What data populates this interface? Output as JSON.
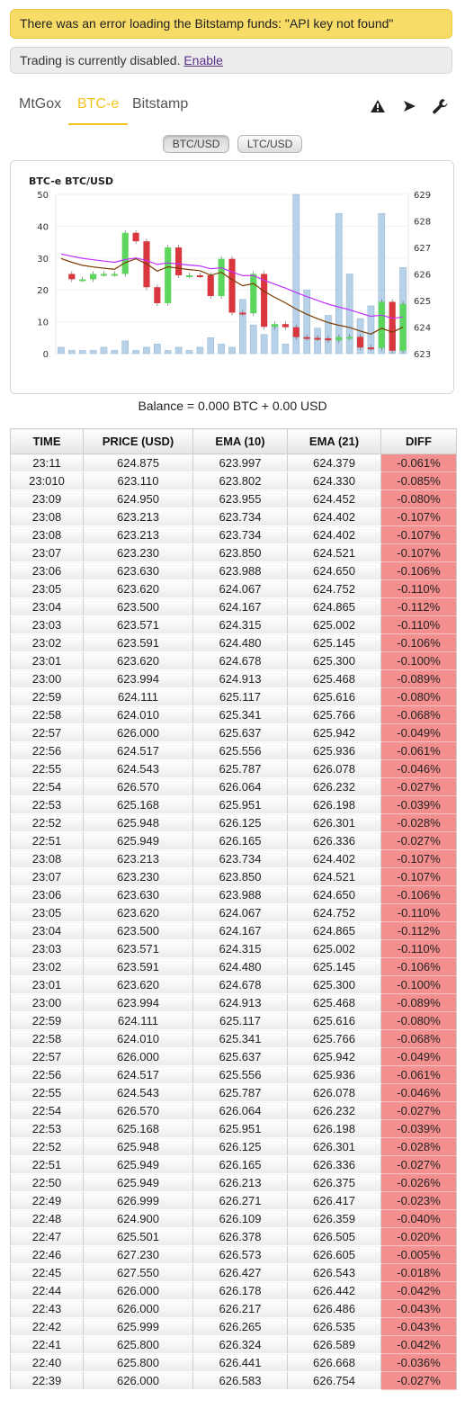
{
  "alerts": {
    "error": "There was an error loading the Bitstamp funds: \"API key not found\"",
    "info_text": "Trading is currently disabled.",
    "info_link": "Enable"
  },
  "tabs": [
    {
      "label": "MtGox",
      "active": false
    },
    {
      "label": "BTC-e",
      "active": true
    },
    {
      "label": "Bitstamp",
      "active": false
    }
  ],
  "toolbar_icons": [
    "warning-icon",
    "play-icon",
    "wrench-icon"
  ],
  "pairs": [
    {
      "label": "BTC/USD",
      "active": true
    },
    {
      "label": "LTC/USD",
      "active": false
    }
  ],
  "colors": {
    "accent": "#f3c11c",
    "up_candle": "#5cd65c",
    "down_candle": "#d9363e",
    "volume_bar": "#b7d2e8",
    "ema_fast": "#7a3b00",
    "ema_slow": "#c030ff",
    "diff_negative": "#f48f8f"
  },
  "chart_data": {
    "type": "candlestick",
    "title": "BTC-e BTC/USD",
    "left_axis_ticks": [
      "0",
      "10",
      "20",
      "30",
      "40",
      "50"
    ],
    "right_axis_ticks": [
      "623",
      "624",
      "625",
      "626",
      "627",
      "628",
      "629"
    ],
    "left_ylim": [
      0,
      50
    ],
    "right_ylim": [
      623,
      629
    ],
    "series": [
      {
        "name": "EMA (10)",
        "values": [
          626.583,
          626.441,
          626.324,
          626.265,
          626.217,
          626.178,
          626.427,
          626.573,
          626.378,
          626.109,
          626.271,
          626.213,
          626.165,
          626.125,
          625.951,
          626.064,
          625.787,
          625.556,
          625.637,
          625.341,
          625.117,
          624.913,
          624.678,
          624.48,
          624.315,
          624.167,
          624.067,
          623.988,
          623.85,
          623.734,
          623.955,
          623.802,
          623.997
        ]
      },
      {
        "name": "EMA (21)",
        "values": [
          626.754,
          626.668,
          626.589,
          626.535,
          626.486,
          626.442,
          626.543,
          626.605,
          626.505,
          626.359,
          626.417,
          626.375,
          626.336,
          626.301,
          626.198,
          626.232,
          626.078,
          625.936,
          625.942,
          625.766,
          625.616,
          625.468,
          625.3,
          625.145,
          625.002,
          624.865,
          624.752,
          624.65,
          624.521,
          624.402,
          624.452,
          624.33,
          624.379
        ]
      },
      {
        "name": "Price",
        "values": [
          626.0,
          625.8,
          625.8,
          625.999,
          626.0,
          626.0,
          627.55,
          627.23,
          625.501,
          624.9,
          626.999,
          625.949,
          625.949,
          625.948,
          625.168,
          626.57,
          624.543,
          624.517,
          626.0,
          624.01,
          624.111,
          623.994,
          623.62,
          623.591,
          623.571,
          623.5,
          623.62,
          623.63,
          623.23,
          623.213,
          624.95,
          623.11,
          624.875
        ]
      }
    ],
    "volume": [
      2,
      1,
      1,
      1,
      2,
      1,
      4,
      1,
      2,
      3,
      1,
      2,
      1,
      2,
      5,
      3,
      2,
      17,
      9,
      6,
      9,
      3,
      50,
      20,
      8,
      12,
      44,
      25,
      11,
      15,
      44,
      9,
      27
    ]
  },
  "balance": "Balance = 0.000 BTC + 0.00 USD",
  "table": {
    "headers": [
      "TIME",
      "PRICE (USD)",
      "EMA (10)",
      "EMA (21)",
      "DIFF"
    ],
    "rows": [
      [
        "23:11",
        "624.875",
        "623.997",
        "624.379",
        "-0.061%"
      ],
      [
        "23:010",
        "623.110",
        "623.802",
        "624.330",
        "-0.085%"
      ],
      [
        "23:09",
        "624.950",
        "623.955",
        "624.452",
        "-0.080%"
      ],
      [
        "23:08",
        "623.213",
        "623.734",
        "624.402",
        "-0.107%"
      ],
      [
        "23:08",
        "623.213",
        "623.734",
        "624.402",
        "-0.107%"
      ],
      [
        "23:07",
        "623.230",
        "623.850",
        "624.521",
        "-0.107%"
      ],
      [
        "23:06",
        "623.630",
        "623.988",
        "624.650",
        "-0.106%"
      ],
      [
        "23:05",
        "623.620",
        "624.067",
        "624.752",
        "-0.110%"
      ],
      [
        "23:04",
        "623.500",
        "624.167",
        "624.865",
        "-0.112%"
      ],
      [
        "23:03",
        "623.571",
        "624.315",
        "625.002",
        "-0.110%"
      ],
      [
        "23:02",
        "623.591",
        "624.480",
        "625.145",
        "-0.106%"
      ],
      [
        "23:01",
        "623.620",
        "624.678",
        "625.300",
        "-0.100%"
      ],
      [
        "23:00",
        "623.994",
        "624.913",
        "625.468",
        "-0.089%"
      ],
      [
        "22:59",
        "624.111",
        "625.117",
        "625.616",
        "-0.080%"
      ],
      [
        "22:58",
        "624.010",
        "625.341",
        "625.766",
        "-0.068%"
      ],
      [
        "22:57",
        "626.000",
        "625.637",
        "625.942",
        "-0.049%"
      ],
      [
        "22:56",
        "624.517",
        "625.556",
        "625.936",
        "-0.061%"
      ],
      [
        "22:55",
        "624.543",
        "625.787",
        "626.078",
        "-0.046%"
      ],
      [
        "22:54",
        "626.570",
        "626.064",
        "626.232",
        "-0.027%"
      ],
      [
        "22:53",
        "625.168",
        "625.951",
        "626.198",
        "-0.039%"
      ],
      [
        "22:52",
        "625.948",
        "626.125",
        "626.301",
        "-0.028%"
      ],
      [
        "22:51",
        "625.949",
        "626.165",
        "626.336",
        "-0.027%"
      ],
      [
        "23:08",
        "623.213",
        "623.734",
        "624.402",
        "-0.107%"
      ],
      [
        "23:07",
        "623.230",
        "623.850",
        "624.521",
        "-0.107%"
      ],
      [
        "23:06",
        "623.630",
        "623.988",
        "624.650",
        "-0.106%"
      ],
      [
        "23:05",
        "623.620",
        "624.067",
        "624.752",
        "-0.110%"
      ],
      [
        "23:04",
        "623.500",
        "624.167",
        "624.865",
        "-0.112%"
      ],
      [
        "23:03",
        "623.571",
        "624.315",
        "625.002",
        "-0.110%"
      ],
      [
        "23:02",
        "623.591",
        "624.480",
        "625.145",
        "-0.106%"
      ],
      [
        "23:01",
        "623.620",
        "624.678",
        "625.300",
        "-0.100%"
      ],
      [
        "23:00",
        "623.994",
        "624.913",
        "625.468",
        "-0.089%"
      ],
      [
        "22:59",
        "624.111",
        "625.117",
        "625.616",
        "-0.080%"
      ],
      [
        "22:58",
        "624.010",
        "625.341",
        "625.766",
        "-0.068%"
      ],
      [
        "22:57",
        "626.000",
        "625.637",
        "625.942",
        "-0.049%"
      ],
      [
        "22:56",
        "624.517",
        "625.556",
        "625.936",
        "-0.061%"
      ],
      [
        "22:55",
        "624.543",
        "625.787",
        "626.078",
        "-0.046%"
      ],
      [
        "22:54",
        "626.570",
        "626.064",
        "626.232",
        "-0.027%"
      ],
      [
        "22:53",
        "625.168",
        "625.951",
        "626.198",
        "-0.039%"
      ],
      [
        "22:52",
        "625.948",
        "626.125",
        "626.301",
        "-0.028%"
      ],
      [
        "22:51",
        "625.949",
        "626.165",
        "626.336",
        "-0.027%"
      ],
      [
        "22:50",
        "625.949",
        "626.213",
        "626.375",
        "-0.026%"
      ],
      [
        "22:49",
        "626.999",
        "626.271",
        "626.417",
        "-0.023%"
      ],
      [
        "22:48",
        "624.900",
        "626.109",
        "626.359",
        "-0.040%"
      ],
      [
        "22:47",
        "625.501",
        "626.378",
        "626.505",
        "-0.020%"
      ],
      [
        "22:46",
        "627.230",
        "626.573",
        "626.605",
        "-0.005%"
      ],
      [
        "22:45",
        "627.550",
        "626.427",
        "626.543",
        "-0.018%"
      ],
      [
        "22:44",
        "626.000",
        "626.178",
        "626.442",
        "-0.042%"
      ],
      [
        "22:43",
        "626.000",
        "626.217",
        "626.486",
        "-0.043%"
      ],
      [
        "22:42",
        "625.999",
        "626.265",
        "626.535",
        "-0.043%"
      ],
      [
        "22:41",
        "625.800",
        "626.324",
        "626.589",
        "-0.042%"
      ],
      [
        "22:40",
        "625.800",
        "626.441",
        "626.668",
        "-0.036%"
      ],
      [
        "22:39",
        "626.000",
        "626.583",
        "626.754",
        "-0.027%"
      ]
    ]
  }
}
